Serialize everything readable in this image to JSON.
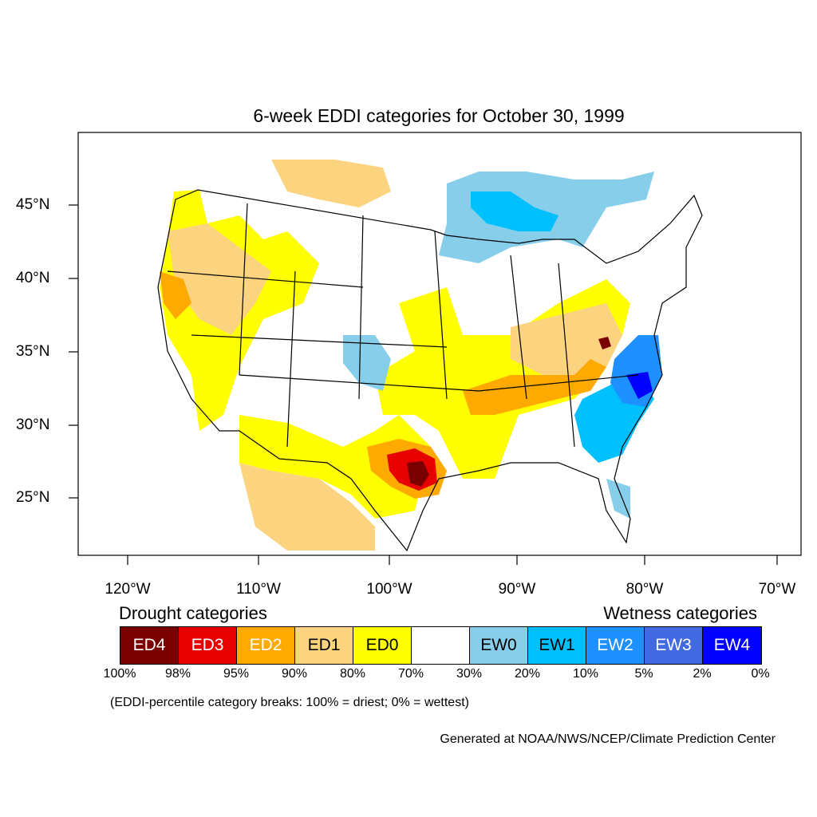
{
  "title": "6-week EDDI categories for October 30, 1999",
  "lon_labels": [
    "120°W",
    "110°W",
    "100°W",
    "90°W",
    "80°W",
    "70°W"
  ],
  "lat_labels": [
    "45°N",
    "40°N",
    "35°N",
    "30°N",
    "25°N"
  ],
  "drought_header": "Drought categories",
  "wetness_header": "Wetness categories",
  "categories": [
    {
      "label": "ED4",
      "color": "#7a0000",
      "text_color": "#ffffff"
    },
    {
      "label": "ED3",
      "color": "#e60000",
      "text_color": "#ffffff"
    },
    {
      "label": "ED2",
      "color": "#ffaa00",
      "text_color": "#ffffff"
    },
    {
      "label": "ED1",
      "color": "#fcd37f",
      "text_color": "#000000"
    },
    {
      "label": "ED0",
      "color": "#ffff00",
      "text_color": "#000000"
    },
    {
      "label": "",
      "color": "#ffffff",
      "text_color": "#000000"
    },
    {
      "label": "EW0",
      "color": "#87ceeb",
      "text_color": "#000000"
    },
    {
      "label": "EW1",
      "color": "#00bfff",
      "text_color": "#000000"
    },
    {
      "label": "EW2",
      "color": "#1e90ff",
      "text_color": "#ffffff"
    },
    {
      "label": "EW3",
      "color": "#4169e1",
      "text_color": "#ffffff"
    },
    {
      "label": "EW4",
      "color": "#0000ff",
      "text_color": "#ffffff"
    }
  ],
  "breaks": [
    "100%",
    "98%",
    "95%",
    "90%",
    "80%",
    "70%",
    "30%",
    "20%",
    "10%",
    "5%",
    "2%",
    "0%"
  ],
  "breaks_note": "(EDDI-percentile category breaks: 100% = driest; 0% = wettest)",
  "credit": "Generated at NOAA/NWS/NCEP/Climate Prediction Center"
}
